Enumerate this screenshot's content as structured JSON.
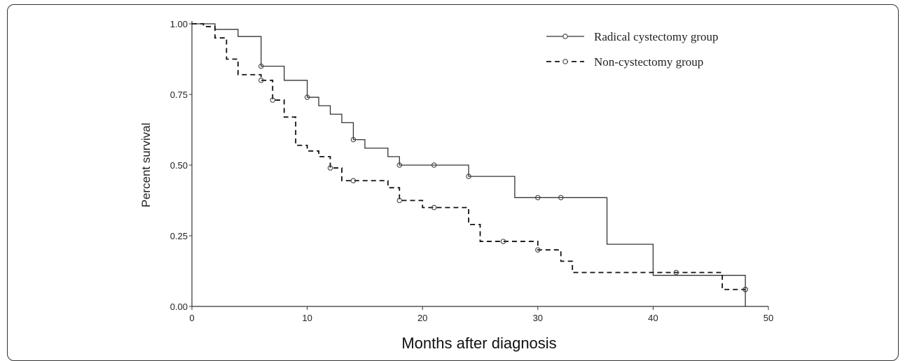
{
  "chart_data": {
    "type": "line",
    "title": "",
    "xlabel": "Months after diagnosis",
    "ylabel": "Percent survival",
    "xlim": [
      0,
      50
    ],
    "ylim": [
      0,
      1
    ],
    "x_ticks": [
      "0",
      "10",
      "20",
      "30",
      "40",
      "50"
    ],
    "y_ticks": [
      "0.00",
      "0.25",
      "0.50",
      "0.75",
      "1.00"
    ],
    "grid": false,
    "legend_position": "top-right",
    "series": [
      {
        "name": "Radical cystectomy group",
        "style": "solid",
        "color": "#333333",
        "steps": [
          [
            0,
            1.0
          ],
          [
            2,
            0.98
          ],
          [
            4,
            0.955
          ],
          [
            6,
            0.85
          ],
          [
            8,
            0.8
          ],
          [
            10,
            0.74
          ],
          [
            11,
            0.71
          ],
          [
            12,
            0.68
          ],
          [
            13,
            0.65
          ],
          [
            14,
            0.59
          ],
          [
            15,
            0.56
          ],
          [
            17,
            0.53
          ],
          [
            18,
            0.5
          ],
          [
            24,
            0.46
          ],
          [
            28,
            0.385
          ],
          [
            36,
            0.22
          ],
          [
            40,
            0.11
          ],
          [
            48,
            0.0
          ]
        ],
        "end_x": 48,
        "censored": [
          [
            6,
            0.85
          ],
          [
            10,
            0.74
          ],
          [
            14,
            0.59
          ],
          [
            18,
            0.5
          ],
          [
            21,
            0.5
          ],
          [
            24,
            0.46
          ],
          [
            30,
            0.385
          ],
          [
            32,
            0.385
          ],
          [
            42,
            0.12
          ],
          [
            48,
            0.06
          ]
        ]
      },
      {
        "name": "Non-cystectomy group",
        "style": "dashed",
        "color": "#111111",
        "steps": [
          [
            0,
            1.0
          ],
          [
            1,
            0.99
          ],
          [
            2,
            0.95
          ],
          [
            3,
            0.875
          ],
          [
            4,
            0.82
          ],
          [
            6,
            0.8
          ],
          [
            7,
            0.73
          ],
          [
            8,
            0.67
          ],
          [
            9,
            0.57
          ],
          [
            10,
            0.55
          ],
          [
            11,
            0.53
          ],
          [
            12,
            0.49
          ],
          [
            13,
            0.445
          ],
          [
            17,
            0.42
          ],
          [
            18,
            0.375
          ],
          [
            20,
            0.35
          ],
          [
            24,
            0.29
          ],
          [
            25,
            0.23
          ],
          [
            30,
            0.2
          ],
          [
            32,
            0.16
          ],
          [
            33,
            0.12
          ],
          [
            46,
            0.06
          ],
          [
            48,
            0.06
          ]
        ],
        "end_x": 48,
        "censored": [
          [
            6,
            0.8
          ],
          [
            7,
            0.73
          ],
          [
            12,
            0.49
          ],
          [
            14,
            0.445
          ],
          [
            18,
            0.375
          ],
          [
            21,
            0.35
          ],
          [
            27,
            0.23
          ],
          [
            30,
            0.2
          ],
          [
            48,
            0.06
          ]
        ]
      }
    ]
  }
}
